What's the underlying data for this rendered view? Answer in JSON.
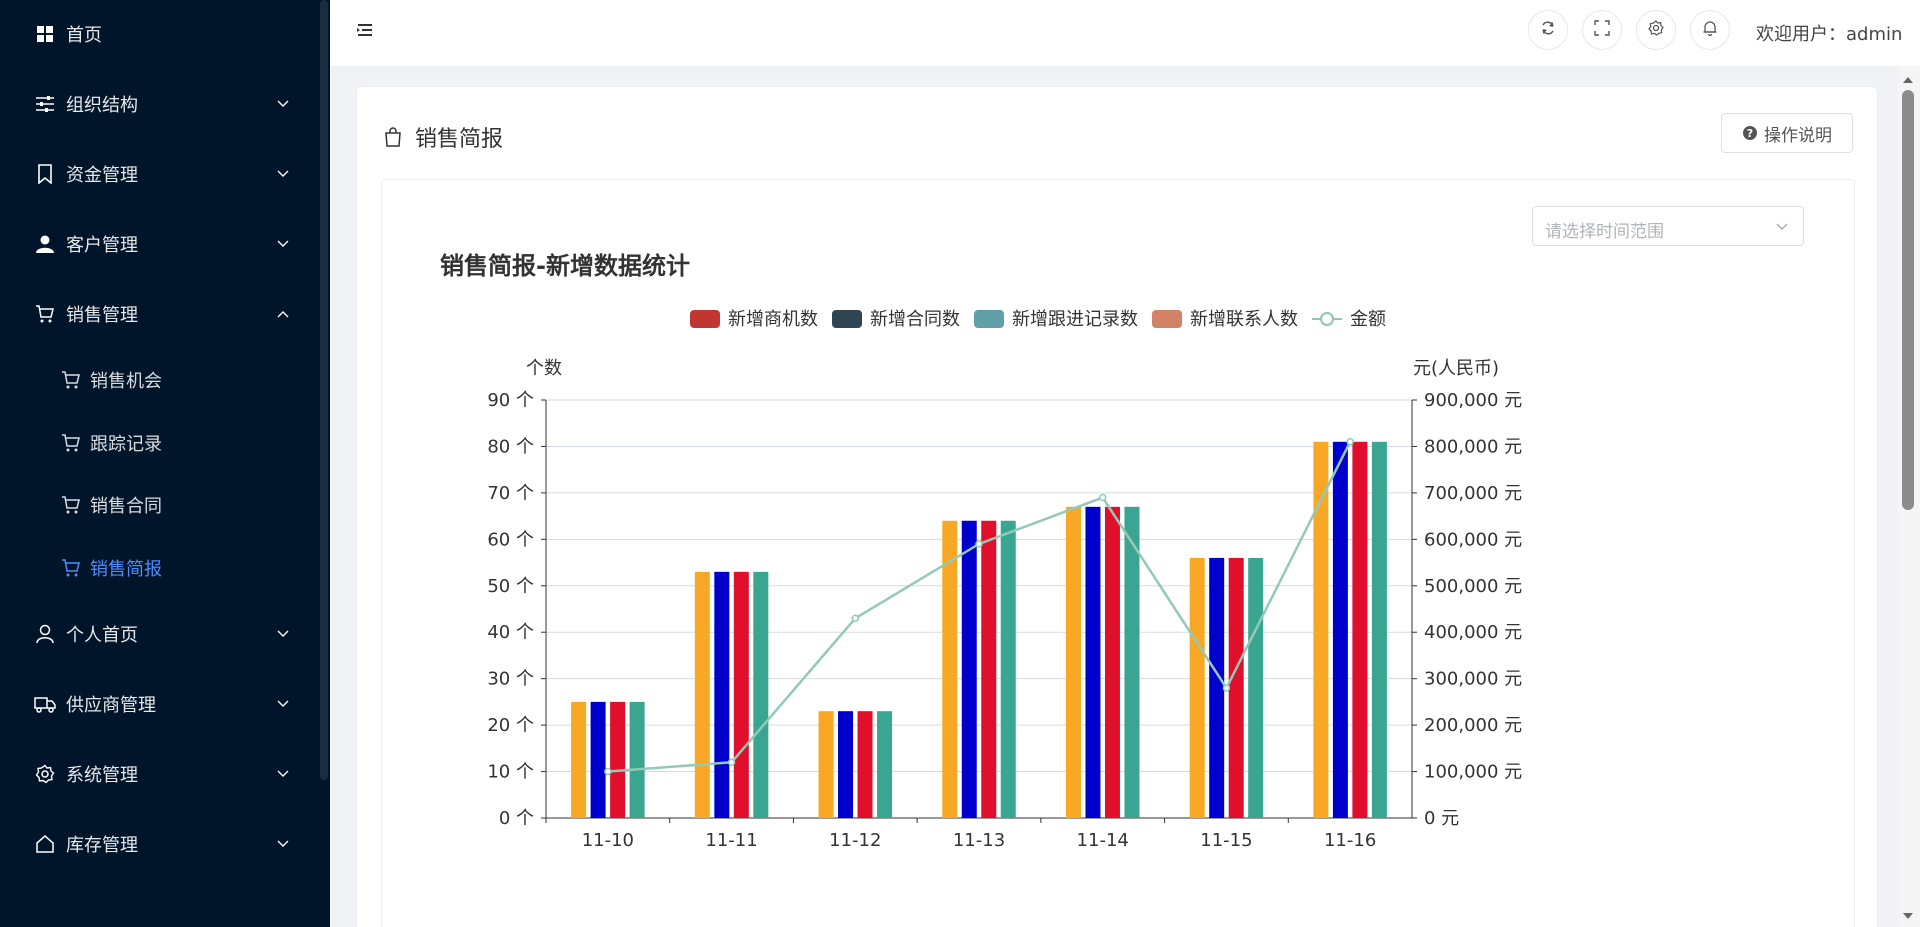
{
  "sidebar": {
    "items": [
      {
        "label": "首页",
        "icon": "dashboard-icon",
        "expandable": false
      },
      {
        "label": "组织结构",
        "icon": "sliders-icon",
        "expandable": true
      },
      {
        "label": "资金管理",
        "icon": "bookmark-icon",
        "expandable": true
      },
      {
        "label": "客户管理",
        "icon": "user-filled-icon",
        "expandable": true
      },
      {
        "label": "销售管理",
        "icon": "cart-icon",
        "expandable": true,
        "expanded": true
      },
      {
        "label": "个人首页",
        "icon": "user-icon",
        "expandable": true
      },
      {
        "label": "供应商管理",
        "icon": "truck-icon",
        "expandable": true
      },
      {
        "label": "系统管理",
        "icon": "gear-icon",
        "expandable": true
      },
      {
        "label": "库存管理",
        "icon": "home-icon",
        "expandable": true
      }
    ],
    "sales_sub": [
      {
        "label": "销售机会",
        "active": false
      },
      {
        "label": "跟踪记录",
        "active": false
      },
      {
        "label": "销售合同",
        "active": false
      },
      {
        "label": "销售简报",
        "active": true
      }
    ]
  },
  "header": {
    "welcome": "欢迎用户：admin",
    "buttons": [
      "refresh-icon",
      "fullscreen-icon",
      "settings-icon",
      "bell-icon"
    ]
  },
  "page": {
    "title": "销售简报",
    "help_label": "操作说明",
    "date_placeholder": "请选择时间范围"
  },
  "colors": {
    "sidebar_bg": "#001529",
    "active": "#4d8dff",
    "bar_orange": "#f9a826",
    "bar_blue": "#0000cc",
    "bar_red": "#e0102c",
    "bar_teal": "#3aa691",
    "line": "#93c9b8"
  },
  "chart_data": {
    "type": "bar",
    "title": "销售简报-新增数据统计",
    "categories": [
      "11-10",
      "11-11",
      "11-12",
      "11-13",
      "11-14",
      "11-15",
      "11-16"
    ],
    "legend": [
      {
        "name": "新增商机数",
        "color": "#c23531",
        "kind": "bar"
      },
      {
        "name": "新增合同数",
        "color": "#2f4554",
        "kind": "bar"
      },
      {
        "name": "新增跟进记录数",
        "color": "#61a0a8",
        "kind": "bar"
      },
      {
        "name": "新增联系人数",
        "color": "#d48265",
        "kind": "bar"
      },
      {
        "name": "金额",
        "color": "#91c7ae",
        "kind": "line"
      }
    ],
    "series": [
      {
        "values": [
          25,
          53,
          23,
          64,
          67,
          56,
          81
        ],
        "color": "#f9a826"
      },
      {
        "values": [
          25,
          53,
          23,
          64,
          67,
          56,
          81
        ],
        "color": "#0000cc"
      },
      {
        "values": [
          25,
          53,
          23,
          64,
          67,
          56,
          81
        ],
        "color": "#e0102c"
      },
      {
        "values": [
          25,
          53,
          23,
          64,
          67,
          56,
          81
        ],
        "color": "#3aa691"
      }
    ],
    "line": {
      "values": [
        100000,
        120000,
        430000,
        590000,
        690000,
        280000,
        810000
      ],
      "color": "#93c9b8"
    },
    "ylabel_left": "个数",
    "ylabel_right": "元(人民币)",
    "ylim_left": [
      0,
      90
    ],
    "ylim_right": [
      0,
      900000
    ],
    "yticks_left": [
      "0 个",
      "10 个",
      "20 个",
      "30 个",
      "40 个",
      "50 个",
      "60 个",
      "70 个",
      "80 个",
      "90 个"
    ],
    "yticks_right": [
      "0 元",
      "100,000 元",
      "200,000 元",
      "300,000 元",
      "400,000 元",
      "500,000 元",
      "600,000 元",
      "700,000 元",
      "800,000 元",
      "900,000 元"
    ],
    "grid": true,
    "legend_position": "top-center"
  }
}
